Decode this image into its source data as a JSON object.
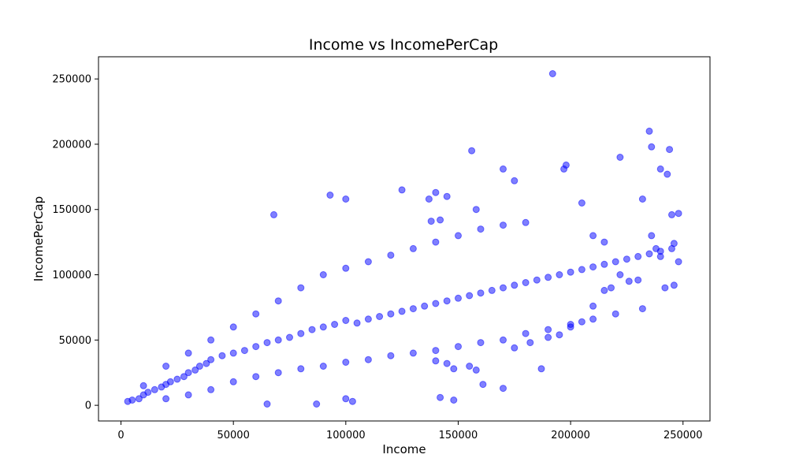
{
  "chart_data": {
    "type": "scatter",
    "title": "Income vs IncomePerCap",
    "xlabel": "Income",
    "ylabel": "IncomePerCap",
    "xlim": [
      -10000,
      262000
    ],
    "ylim": [
      -12000,
      267000
    ],
    "xticks": [
      0,
      50000,
      100000,
      150000,
      200000,
      250000
    ],
    "yticks": [
      0,
      50000,
      100000,
      150000,
      200000,
      250000
    ],
    "marker_color": "#0000ff",
    "marker_alpha": 0.5,
    "grid": false,
    "legend": "none",
    "series": [
      {
        "points": [
          [
            3000,
            3000
          ],
          [
            5000,
            4000
          ],
          [
            8000,
            5000
          ],
          [
            10000,
            8000
          ],
          [
            12000,
            10000
          ],
          [
            15000,
            12000
          ],
          [
            18000,
            14000
          ],
          [
            20000,
            16000
          ],
          [
            22000,
            18000
          ],
          [
            25000,
            20000
          ],
          [
            28000,
            22000
          ],
          [
            30000,
            25000
          ],
          [
            33000,
            27000
          ],
          [
            35000,
            30000
          ],
          [
            38000,
            32000
          ],
          [
            40000,
            35000
          ],
          [
            45000,
            38000
          ],
          [
            50000,
            40000
          ],
          [
            55000,
            42000
          ],
          [
            60000,
            45000
          ],
          [
            65000,
            48000
          ],
          [
            70000,
            50000
          ],
          [
            75000,
            52000
          ],
          [
            80000,
            55000
          ],
          [
            85000,
            58000
          ],
          [
            90000,
            60000
          ],
          [
            95000,
            62000
          ],
          [
            100000,
            65000
          ],
          [
            105000,
            63000
          ],
          [
            110000,
            66000
          ],
          [
            115000,
            68000
          ],
          [
            120000,
            70000
          ],
          [
            125000,
            72000
          ],
          [
            130000,
            74000
          ],
          [
            135000,
            76000
          ],
          [
            140000,
            78000
          ],
          [
            145000,
            80000
          ],
          [
            150000,
            82000
          ],
          [
            155000,
            84000
          ],
          [
            160000,
            86000
          ],
          [
            165000,
            88000
          ],
          [
            170000,
            90000
          ],
          [
            175000,
            92000
          ],
          [
            180000,
            94000
          ],
          [
            185000,
            96000
          ],
          [
            190000,
            98000
          ],
          [
            195000,
            100000
          ],
          [
            200000,
            102000
          ],
          [
            205000,
            104000
          ],
          [
            210000,
            106000
          ],
          [
            215000,
            108000
          ],
          [
            220000,
            110000
          ],
          [
            225000,
            112000
          ],
          [
            230000,
            114000
          ],
          [
            235000,
            116000
          ],
          [
            240000,
            118000
          ],
          [
            245000,
            120000
          ],
          [
            20000,
            5000
          ],
          [
            30000,
            8000
          ],
          [
            40000,
            12000
          ],
          [
            50000,
            18000
          ],
          [
            60000,
            22000
          ],
          [
            70000,
            25000
          ],
          [
            80000,
            28000
          ],
          [
            90000,
            30000
          ],
          [
            100000,
            33000
          ],
          [
            110000,
            35000
          ],
          [
            120000,
            38000
          ],
          [
            130000,
            40000
          ],
          [
            140000,
            42000
          ],
          [
            150000,
            45000
          ],
          [
            160000,
            48000
          ],
          [
            170000,
            50000
          ],
          [
            180000,
            55000
          ],
          [
            190000,
            58000
          ],
          [
            200000,
            62000
          ],
          [
            210000,
            66000
          ],
          [
            220000,
            70000
          ],
          [
            10000,
            15000
          ],
          [
            20000,
            30000
          ],
          [
            30000,
            40000
          ],
          [
            40000,
            50000
          ],
          [
            50000,
            60000
          ],
          [
            60000,
            70000
          ],
          [
            70000,
            80000
          ],
          [
            80000,
            90000
          ],
          [
            90000,
            100000
          ],
          [
            100000,
            105000
          ],
          [
            110000,
            110000
          ],
          [
            120000,
            115000
          ],
          [
            130000,
            120000
          ],
          [
            140000,
            125000
          ],
          [
            150000,
            130000
          ],
          [
            160000,
            135000
          ],
          [
            170000,
            138000
          ],
          [
            180000,
            140000
          ],
          [
            192000,
            254000
          ],
          [
            235000,
            210000
          ],
          [
            236000,
            198000
          ],
          [
            244000,
            196000
          ],
          [
            156000,
            195000
          ],
          [
            222000,
            190000
          ],
          [
            198000,
            184000
          ],
          [
            197000,
            181000
          ],
          [
            170000,
            181000
          ],
          [
            240000,
            181000
          ],
          [
            243000,
            177000
          ],
          [
            175000,
            172000
          ],
          [
            93000,
            161000
          ],
          [
            100000,
            158000
          ],
          [
            125000,
            165000
          ],
          [
            140000,
            163000
          ],
          [
            145000,
            160000
          ],
          [
            137000,
            158000
          ],
          [
            205000,
            155000
          ],
          [
            232000,
            158000
          ],
          [
            248000,
            147000
          ],
          [
            245000,
            146000
          ],
          [
            68000,
            146000
          ],
          [
            158000,
            150000
          ],
          [
            138000,
            141000
          ],
          [
            142000,
            142000
          ],
          [
            210000,
            130000
          ],
          [
            236000,
            130000
          ],
          [
            215000,
            125000
          ],
          [
            238000,
            120000
          ],
          [
            232000,
            74000
          ],
          [
            187000,
            28000
          ],
          [
            170000,
            13000
          ],
          [
            161000,
            16000
          ],
          [
            142000,
            6000
          ],
          [
            148000,
            4000
          ],
          [
            87000,
            1000
          ],
          [
            65000,
            1000
          ],
          [
            103000,
            3000
          ],
          [
            100000,
            5000
          ],
          [
            155000,
            30000
          ],
          [
            158000,
            27000
          ],
          [
            148000,
            28000
          ],
          [
            145000,
            32000
          ],
          [
            140000,
            34000
          ],
          [
            175000,
            44000
          ],
          [
            182000,
            48000
          ],
          [
            190000,
            52000
          ],
          [
            195000,
            54000
          ],
          [
            200000,
            60000
          ],
          [
            205000,
            64000
          ],
          [
            210000,
            76000
          ],
          [
            215000,
            88000
          ],
          [
            218000,
            90000
          ],
          [
            222000,
            100000
          ],
          [
            226000,
            95000
          ],
          [
            230000,
            96000
          ],
          [
            242000,
            90000
          ],
          [
            246000,
            92000
          ],
          [
            248000,
            110000
          ],
          [
            246000,
            124000
          ],
          [
            240000,
            114000
          ]
        ]
      }
    ]
  }
}
